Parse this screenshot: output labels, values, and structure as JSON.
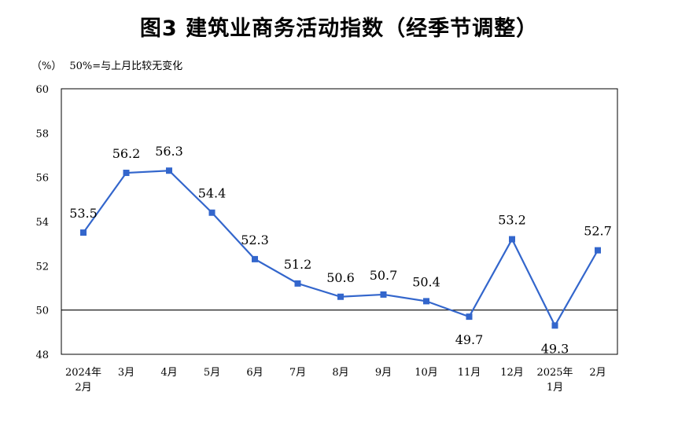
{
  "title": "图3  建筑业商务活动指数（经季节调整）",
  "unit": "（%）",
  "note": "50%=与上月比较无变化",
  "colors": {
    "line": "#3366cc",
    "axis": "#000000"
  },
  "chart_data": {
    "type": "line",
    "title": "图3  建筑业商务活动指数（经季节调整）",
    "ylabel": "（%）",
    "categories": [
      [
        "2024年",
        "2月"
      ],
      [
        "3月"
      ],
      [
        "4月"
      ],
      [
        "5月"
      ],
      [
        "6月"
      ],
      [
        "7月"
      ],
      [
        "8月"
      ],
      [
        "9月"
      ],
      [
        "10月"
      ],
      [
        "11月"
      ],
      [
        "12月"
      ],
      [
        "2025年",
        "1月"
      ],
      [
        "2月"
      ]
    ],
    "values": [
      53.5,
      56.2,
      56.3,
      54.4,
      52.3,
      51.2,
      50.6,
      50.7,
      50.4,
      49.7,
      53.2,
      49.3,
      52.7
    ],
    "label_position": [
      "above",
      "above",
      "above",
      "above",
      "above",
      "above",
      "above",
      "above",
      "above",
      "below",
      "above",
      "below",
      "above"
    ],
    "ylim": [
      48,
      60
    ],
    "yticks": [
      48,
      50,
      52,
      54,
      56,
      58,
      60
    ],
    "reference_line": 50,
    "grid": false,
    "marker": "square"
  }
}
